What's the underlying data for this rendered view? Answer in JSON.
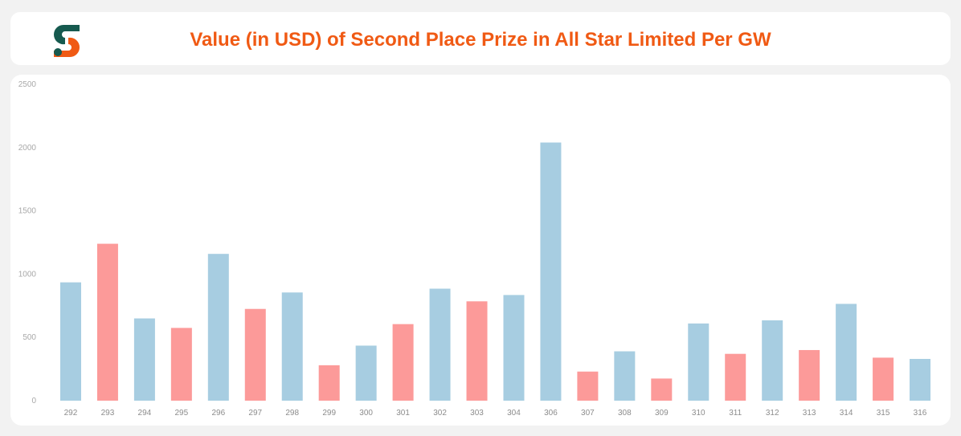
{
  "header": {
    "title": "Value (in USD) of Second Place Prize in All Star Limited Per GW",
    "logo_icon": "brand-s-logo-icon",
    "logo_colors": {
      "dark": "#165a4f",
      "accent": "#f05a14"
    }
  },
  "colors": {
    "title": "#f05a14",
    "bar_blue": "#a7cde1",
    "bar_red": "#fc9a99",
    "background": "#f2f2f2",
    "card": "#ffffff"
  },
  "chart_data": {
    "type": "bar",
    "title": "Value (in USD) of Second Place Prize in All Star Limited Per GW",
    "xlabel": "",
    "ylabel": "",
    "ylim": [
      0,
      2500
    ],
    "yticks": [
      0,
      500,
      1000,
      1500,
      2000,
      2500
    ],
    "grid": false,
    "legend": "none",
    "categories": [
      "292",
      "293",
      "294",
      "295",
      "296",
      "297",
      "298",
      "299",
      "300",
      "301",
      "302",
      "303",
      "304",
      "306",
      "307",
      "308",
      "309",
      "310",
      "311",
      "312",
      "313",
      "314",
      "315",
      "316"
    ],
    "values": [
      935,
      1240,
      650,
      575,
      1160,
      725,
      855,
      280,
      435,
      605,
      885,
      785,
      835,
      2040,
      230,
      390,
      175,
      610,
      370,
      635,
      400,
      765,
      340,
      330
    ],
    "bar_colors": [
      "#a7cde1",
      "#fc9a99",
      "#a7cde1",
      "#fc9a99",
      "#a7cde1",
      "#fc9a99",
      "#a7cde1",
      "#fc9a99",
      "#a7cde1",
      "#fc9a99",
      "#a7cde1",
      "#fc9a99",
      "#a7cde1",
      "#a7cde1",
      "#fc9a99",
      "#a7cde1",
      "#fc9a99",
      "#a7cde1",
      "#fc9a99",
      "#a7cde1",
      "#fc9a99",
      "#a7cde1",
      "#fc9a99",
      "#a7cde1"
    ]
  }
}
